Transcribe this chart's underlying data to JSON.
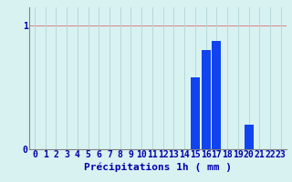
{
  "hours": [
    0,
    1,
    2,
    3,
    4,
    5,
    6,
    7,
    8,
    9,
    10,
    11,
    12,
    13,
    14,
    15,
    16,
    17,
    18,
    19,
    20,
    21,
    22,
    23
  ],
  "values": [
    0,
    0,
    0,
    0,
    0,
    0,
    0,
    0,
    0,
    0,
    0,
    0,
    0,
    0,
    0,
    0.58,
    0.8,
    0.88,
    0,
    0,
    0.2,
    0,
    0,
    0
  ],
  "bar_color": "#1144ee",
  "background_color": "#d8f2f2",
  "grid_color_x": "#b8d8d8",
  "grid_color_y": "#e08080",
  "axis_label_color": "#0000aa",
  "xlabel": "Précipitations 1h ( mm )",
  "xlabel_fontsize": 8,
  "ylim": [
    0,
    1.15
  ],
  "yticks": [
    0,
    1
  ],
  "ytick_labels": [
    "0",
    "1"
  ],
  "xlim": [
    -0.5,
    23.5
  ],
  "tick_fontsize": 7
}
